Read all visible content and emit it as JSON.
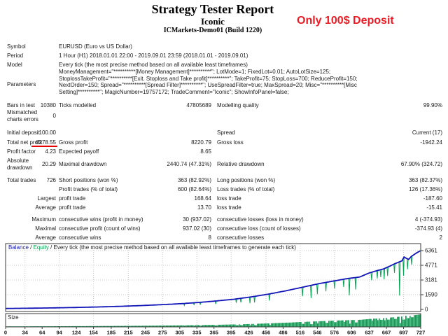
{
  "header": {
    "title": "Strategy Tester Report",
    "expert_name": "Iconic",
    "server": "ICMarkets-Demo01 (Build 1220)",
    "annotation": "Only 100$ Deposit",
    "annotation_color": "#ed1c24",
    "underline_color": "#e60000"
  },
  "info": [
    {
      "label": "Symbol",
      "value": "EURUSD (Euro vs US Dollar)"
    },
    {
      "label": "Period",
      "value": "1 Hour (H1) 2018.01.01 22:00 - 2019.09.01 23:59 (2018.01.01 - 2019.09.01)"
    },
    {
      "label": "Model",
      "value": "Every tick (the most precise method based on all available least timeframes)"
    },
    {
      "label": "Parameters",
      "value": "MoneyManagement=\"**********[Money Management]**********\"; LotMode=1; FixedLot=0.01; AutoLotSize=125;\nStoplossTakeProfit=\"**********[Exit. Stoploss and Take profit]**********\"; TakeProfit=75; StopLoss=700; ReduceProfit=150;\nNextOrder=150; Spread=\"**********[Spread Filter]**********\"; UseSpreadFilter=true; MaxSpread=20; Misc=\"**********[Misc\nSetting]**********\"; MagicNumber=19757172; TradeComment=\"Iconic\"; ShowInfoPanel=false;"
    }
  ],
  "stats": [
    {
      "c1l": "Bars in test",
      "c1v": "10380",
      "c2l": "Ticks modelled",
      "c2v": "47805689",
      "c3l": "Modelling quality",
      "c3v": "99.90%"
    },
    {
      "c1l": "Mismatched charts errors",
      "c1v": "0",
      "wrap": true
    },
    {
      "c1l": "Initial deposit",
      "c1v": "100.00",
      "c3l": "Spread",
      "c3v": "Current (17)"
    },
    {
      "c1l": "Total net profit",
      "c1v": "6278.55",
      "c2l": "Gross profit",
      "c2v": "8220.79",
      "c3l": "Gross loss",
      "c3v": "-1942.24",
      "underline": true
    },
    {
      "c1l": "Profit factor",
      "c1v": "4.23",
      "c2l": "Expected payoff",
      "c2v": "8.65"
    },
    {
      "c1l": "Absolute drawdown",
      "c1v": "20.29",
      "c2l": "Maximal drawdown",
      "c2v": "2440.74 (47.31%)",
      "c3l": "Relative drawdown",
      "c3v": "67.90% (324.72)",
      "wrap": true
    },
    {
      "c1l": "Total trades",
      "c1v": "726",
      "c2l": "Short positions (won %)",
      "c2v": "363 (82.92%)",
      "c3l": "Long positions (won %)",
      "c3v": "363 (82.37%)"
    },
    {
      "c2l": "Profit trades (% of total)",
      "c2v": "600 (82.64%)",
      "c3l": "Loss trades (% of total)",
      "c3v": "126 (17.36%)"
    },
    {
      "c1v": "Largest",
      "c2l": "profit trade",
      "c2v": "168.64",
      "c3l": "loss trade",
      "c3v": "-187.60"
    },
    {
      "c1v": "Average",
      "c2l": "profit trade",
      "c2v": "13.70",
      "c3l": "loss trade",
      "c3v": "-15.41"
    },
    {
      "c1v": "Maximum",
      "c2l": "consecutive wins (profit in money)",
      "c2v": "30 (937.02)",
      "c3l": "consecutive losses (loss in money)",
      "c3v": "4 (-374.93)"
    },
    {
      "c1v": "Maximal",
      "c2l": "consecutive profit (count of wins)",
      "c2v": "937.02 (30)",
      "c3l": "consecutive loss (count of losses)",
      "c3v": "-374.93 (4)"
    },
    {
      "c1v": "Average",
      "c2l": "consecutive wins",
      "c2v": "8",
      "c3l": "consecutive losses",
      "c3v": "2"
    }
  ],
  "chart_data": {
    "type": "line",
    "legend": {
      "series": [
        {
          "name": "Balance",
          "color": "#1114b8"
        },
        {
          "name": "Equity",
          "color": "#00a651"
        }
      ],
      "note": "Every tick (the most precise method based on all available least timeframes to generate each tick)"
    },
    "size_panel_label": "Size",
    "xlabel": "",
    "ylabel": "",
    "x_range": [
      0,
      727
    ],
    "y_range": [
      0,
      6800
    ],
    "x_ticks": [
      0,
      34,
      64,
      94,
      124,
      154,
      185,
      215,
      245,
      275,
      305,
      335,
      365,
      395,
      426,
      456,
      486,
      516,
      546,
      576,
      606,
      637,
      667,
      697,
      727
    ],
    "y_ticks": [
      0,
      1590,
      3181,
      4771,
      6361
    ],
    "grid": true,
    "balance_points": [
      [
        0,
        100
      ],
      [
        40,
        125
      ],
      [
        80,
        160
      ],
      [
        120,
        205
      ],
      [
        160,
        260
      ],
      [
        200,
        330
      ],
      [
        240,
        420
      ],
      [
        280,
        530
      ],
      [
        310,
        630
      ],
      [
        340,
        760
      ],
      [
        370,
        920
      ],
      [
        400,
        1100
      ],
      [
        430,
        1350
      ],
      [
        460,
        1650
      ],
      [
        490,
        2000
      ],
      [
        520,
        2400
      ],
      [
        550,
        2800
      ],
      [
        580,
        3130
      ],
      [
        600,
        3350
      ],
      [
        620,
        3500
      ],
      [
        635,
        3900
      ],
      [
        648,
        4150
      ],
      [
        662,
        4380
      ],
      [
        672,
        4650
      ],
      [
        682,
        4950
      ],
      [
        690,
        5150
      ],
      [
        694,
        5250
      ],
      [
        698,
        5670
      ],
      [
        702,
        5520
      ],
      [
        706,
        5420
      ],
      [
        711,
        5750
      ],
      [
        716,
        5950
      ],
      [
        720,
        6120
      ],
      [
        724,
        6260
      ],
      [
        727,
        6370
      ]
    ],
    "equity_drawdown_points": [
      [
        313,
        430
      ],
      [
        330,
        480
      ],
      [
        341,
        500
      ],
      [
        368,
        580
      ],
      [
        404,
        720
      ],
      [
        412,
        760
      ],
      [
        428,
        670
      ],
      [
        436,
        740
      ],
      [
        462,
        950
      ],
      [
        520,
        1420
      ],
      [
        535,
        1230
      ],
      [
        546,
        1650
      ],
      [
        561,
        1950
      ],
      [
        576,
        2250
      ],
      [
        592,
        2420
      ],
      [
        602,
        1520
      ],
      [
        613,
        2150
      ],
      [
        641,
        3150
      ],
      [
        651,
        3350
      ],
      [
        657,
        3480
      ],
      [
        663,
        3260
      ],
      [
        669,
        3620
      ],
      [
        681,
        3950
      ],
      [
        690,
        1500
      ],
      [
        697,
        3650
      ],
      [
        704,
        4350
      ],
      [
        711,
        4850
      ]
    ],
    "colors": {
      "balance": "#1114b8",
      "equity": "#00a651",
      "size_bar": "#00a64f",
      "grid": "#c9c9c9",
      "border": "#3a3a3a",
      "tick_label": "#1a1a1a"
    }
  }
}
